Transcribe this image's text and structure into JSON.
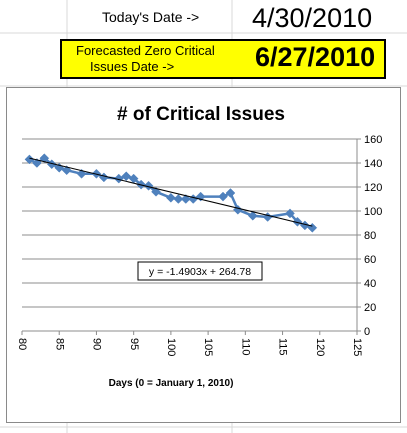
{
  "sheet": {
    "today_label": "Today's Date ->",
    "today_value": "4/30/2010",
    "forecast_label_line1": "Forecasted Zero Critical",
    "forecast_label_line2": "Issues Date ->",
    "forecast_value": "6/27/2010",
    "highlight_color": "#ffff00"
  },
  "chart_data": {
    "type": "scatter",
    "title": "# of Critical Issues",
    "xlabel": "Days (0 = January 1, 2010)",
    "ylabel": "",
    "xlim": [
      80,
      125
    ],
    "ylim": [
      0,
      160
    ],
    "x_ticks": [
      80,
      85,
      90,
      95,
      100,
      105,
      110,
      115,
      120,
      125
    ],
    "y_ticks": [
      0,
      20,
      40,
      60,
      80,
      100,
      120,
      140,
      160
    ],
    "grid": "horizontal",
    "series": [
      {
        "color": "#4f81bd",
        "marker": "diamond",
        "connected": true,
        "points": [
          [
            81,
            143
          ],
          [
            82,
            140
          ],
          [
            83,
            144
          ],
          [
            84,
            139
          ],
          [
            85,
            136
          ],
          [
            86,
            134
          ],
          [
            88,
            131
          ],
          [
            90,
            131
          ],
          [
            91,
            128
          ],
          [
            93,
            127
          ],
          [
            94,
            129
          ],
          [
            95,
            127
          ],
          [
            96,
            122
          ],
          [
            97,
            121
          ],
          [
            98,
            116
          ],
          [
            100,
            111
          ],
          [
            101,
            110
          ],
          [
            102,
            110
          ],
          [
            103,
            110
          ],
          [
            104,
            112
          ],
          [
            107,
            112
          ],
          [
            108,
            115
          ],
          [
            109,
            101
          ],
          [
            111,
            96
          ],
          [
            113,
            95
          ],
          [
            116,
            98
          ],
          [
            117,
            91
          ],
          [
            118,
            88
          ],
          [
            119,
            86
          ]
        ]
      }
    ],
    "trendline": {
      "slope": -1.4903,
      "intercept": 264.78,
      "label": "y = -1.4903x + 264.78",
      "color": "#000000"
    }
  }
}
